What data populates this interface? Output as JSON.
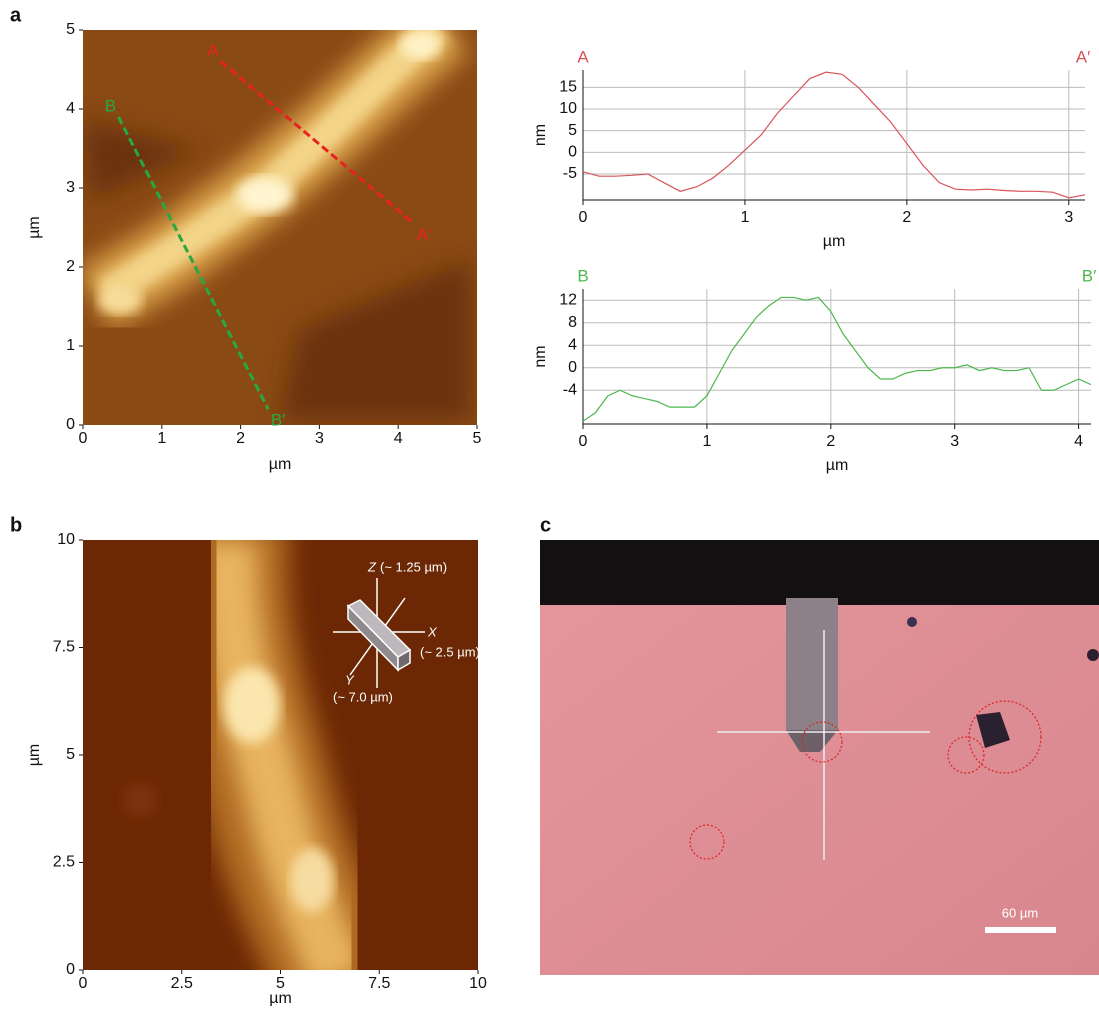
{
  "chart_data": [
    {
      "type": "image",
      "panel": "a",
      "xlabel": "µm",
      "ylabel": "µm",
      "xlim": [
        0,
        5
      ],
      "ylim": [
        0,
        5
      ],
      "xticks": [
        0,
        1,
        2,
        3,
        4,
        5
      ],
      "yticks": [
        0,
        1,
        2,
        3,
        4,
        5
      ],
      "profile_lines": [
        {
          "start_label": "A",
          "end_label": "A′",
          "color": "#e8231f",
          "x": [
            1.75,
            4.2
          ],
          "y": [
            4.6,
            2.55
          ]
        },
        {
          "start_label": "B",
          "end_label": "B′",
          "color": "#27a844",
          "x": [
            0.45,
            2.35
          ],
          "y": [
            3.9,
            0.2
          ]
        }
      ]
    },
    {
      "type": "line",
      "start_label": "A",
      "end_label": "A′",
      "color": "#d9545a",
      "xlabel": "µm",
      "ylabel": "nm",
      "xlim": [
        0,
        3.1
      ],
      "ylim": [
        -11,
        19
      ],
      "xticks": [
        0,
        1,
        2,
        3
      ],
      "yticks": [
        -5,
        0,
        5,
        10,
        15
      ],
      "x": [
        0,
        0.1,
        0.2,
        0.3,
        0.4,
        0.5,
        0.6,
        0.7,
        0.8,
        0.9,
        1.0,
        1.1,
        1.2,
        1.3,
        1.4,
        1.5,
        1.6,
        1.7,
        1.8,
        1.9,
        2.0,
        2.1,
        2.2,
        2.3,
        2.4,
        2.5,
        2.6,
        2.7,
        2.8,
        2.9,
        3.0,
        3.1
      ],
      "values": [
        -4.5,
        -5.5,
        -5.5,
        -5.3,
        -5,
        -7,
        -9,
        -8,
        -6,
        -3,
        0.5,
        4,
        9,
        13,
        17,
        18.5,
        18,
        15,
        11,
        7,
        2,
        -3,
        -7,
        -8.5,
        -8.7,
        -8.5,
        -8.8,
        -9,
        -9,
        -9.2,
        -10.5,
        -9.8
      ]
    },
    {
      "type": "line",
      "start_label": "B",
      "end_label": "B′",
      "color": "#4cb84c",
      "xlabel": "µm",
      "ylabel": "nm",
      "xlim": [
        0,
        4.1
      ],
      "ylim": [
        -10,
        14
      ],
      "xticks": [
        0,
        1,
        2,
        3,
        4
      ],
      "yticks": [
        -4,
        0,
        4,
        8,
        12
      ],
      "x": [
        0,
        0.1,
        0.2,
        0.3,
        0.4,
        0.5,
        0.6,
        0.7,
        0.8,
        0.9,
        1.0,
        1.1,
        1.2,
        1.3,
        1.4,
        1.5,
        1.6,
        1.7,
        1.8,
        1.9,
        2.0,
        2.1,
        2.2,
        2.3,
        2.4,
        2.5,
        2.6,
        2.7,
        2.8,
        2.9,
        3.0,
        3.1,
        3.2,
        3.3,
        3.4,
        3.5,
        3.6,
        3.7,
        3.8,
        3.9,
        4.0,
        4.1
      ],
      "values": [
        -9.5,
        -8,
        -5,
        -4,
        -5,
        -5.5,
        -6,
        -7,
        -7,
        -7,
        -5,
        -1,
        3,
        6,
        9,
        11,
        12.5,
        12.5,
        12,
        12.5,
        10,
        6,
        3,
        0,
        -2,
        -2,
        -1,
        -0.5,
        -0.5,
        0,
        0,
        0.5,
        -0.5,
        0,
        -0.5,
        -0.5,
        0,
        -4,
        -4,
        -3,
        -2,
        -3
      ]
    },
    {
      "type": "image",
      "panel": "b",
      "xlabel": "µm",
      "ylabel": "µm",
      "xlim": [
        0,
        10
      ],
      "ylim": [
        0,
        10
      ],
      "xticks": [
        0,
        2.5,
        5,
        7.5,
        10
      ],
      "yticks": [
        0,
        2.5,
        5,
        7.5,
        10
      ],
      "inset": [
        {
          "axis": "Z",
          "size": "(~ 1.25 µm)"
        },
        {
          "axis": "X",
          "size": "(~ 2.5 µm)"
        },
        {
          "axis": "Y",
          "size": "(~ 7.0 µm)"
        }
      ]
    },
    {
      "type": "photo",
      "panel": "c",
      "scale_bar": "60 µm"
    }
  ]
}
